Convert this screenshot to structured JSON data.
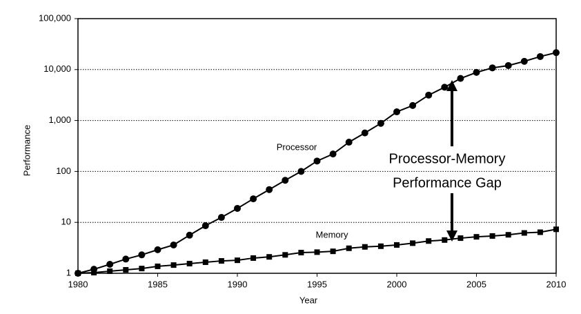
{
  "chart_data": {
    "type": "line",
    "x_label": "Year",
    "y_label": "Performance",
    "log_y": true,
    "grid": true,
    "x": [
      1980,
      1981,
      1982,
      1983,
      1984,
      1985,
      1986,
      1987,
      1988,
      1989,
      1990,
      1991,
      1992,
      1993,
      1994,
      1995,
      1996,
      1997,
      1998,
      1999,
      2000,
      2001,
      2002,
      2003,
      2004,
      2005,
      2006,
      2007,
      2008,
      2009,
      2010
    ],
    "xlim": [
      1980,
      2010
    ],
    "xticks": [
      1980,
      1985,
      1990,
      1995,
      2000,
      2005,
      2010
    ],
    "ylim": [
      1,
      100000
    ],
    "yticks": [
      1,
      10,
      100,
      {
        "value": 1000,
        "label": "1,000"
      },
      {
        "value": 10000,
        "label": "10,000"
      },
      {
        "value": 100000,
        "label": "100,000"
      }
    ],
    "series": [
      {
        "name": "Processor",
        "color": "#000000",
        "marker": "circle",
        "values": [
          1,
          1.2,
          1.5,
          1.9,
          2.3,
          2.9,
          3.6,
          5.6,
          8.6,
          12.5,
          18.8,
          29,
          44,
          67,
          100,
          160,
          220,
          375,
          570,
          880,
          1480,
          1970,
          3150,
          4500,
          6700,
          8800,
          10800,
          12000,
          14500,
          18000,
          21500
        ]
      },
      {
        "name": "Memory",
        "color": "#000000",
        "marker": "square",
        "values": [
          1,
          1.03,
          1.1,
          1.17,
          1.24,
          1.37,
          1.45,
          1.55,
          1.65,
          1.75,
          1.8,
          1.99,
          2.1,
          2.3,
          2.55,
          2.6,
          2.7,
          3.1,
          3.3,
          3.4,
          3.6,
          3.9,
          4.3,
          4.5,
          4.9,
          5.2,
          5.4,
          5.7,
          6.2,
          6.4,
          7.3
        ]
      }
    ],
    "gap_label": [
      "Processor-Memory",
      "Performance Gap"
    ]
  }
}
